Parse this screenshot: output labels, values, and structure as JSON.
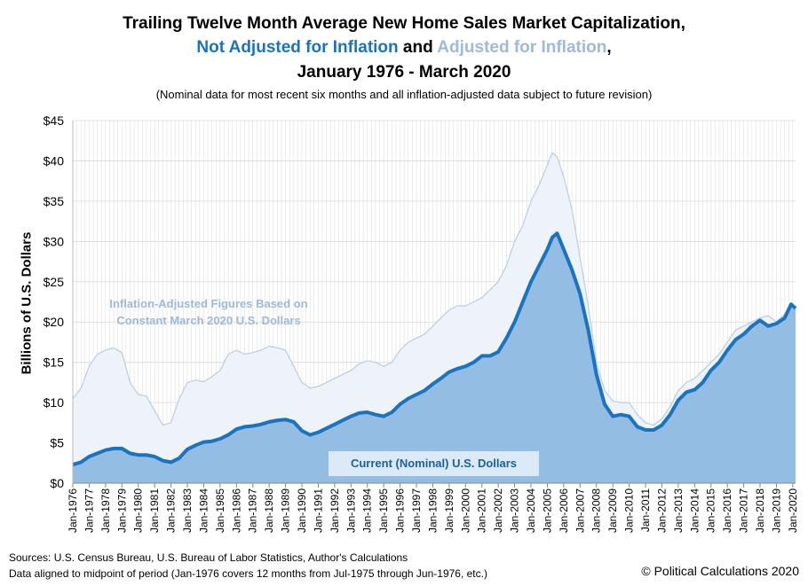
{
  "titles": {
    "line1": "Trailing Twelve Month Average New Home Sales Market Capitalization,",
    "line2_nominal": "Not Adjusted for Inflation",
    "line2_and": " and ",
    "line2_adjusted": "Adjusted for Inflation",
    "line2_comma": ",",
    "line3": "January 1976 - March 2020",
    "subtitle": "(Nominal data for most recent six months and all inflation-adjusted data subject to future revision)"
  },
  "annotations": {
    "adjusted_line1": "Inflation-Adjusted Figures Based on",
    "adjusted_line2": "Constant March 2020 U.S. Dollars",
    "nominal": "Current (Nominal) U.S. Dollars"
  },
  "footer": {
    "sources": "Sources: U.S. Census Bureau, U.S. Bureau of Labor Statistics, Author's Calculations",
    "alignment": "Data aligned to midpoint of period (Jan-1976 covers 12 months from Jul-1975 through Jun-1976, etc.)",
    "copyright": "© Political Calculations 2020"
  },
  "chart_data": {
    "type": "area",
    "ylabel": "Billions of U.S. Dollars",
    "xlabel": "",
    "ylim": [
      0,
      45
    ],
    "yticks": [
      "$0",
      "$5",
      "$10",
      "$15",
      "$20",
      "$25",
      "$30",
      "$35",
      "$40",
      "$45"
    ],
    "xlim": [
      1976,
      2020.17
    ],
    "xticks": [
      "Jan-1976",
      "Jan-1977",
      "Jan-1978",
      "Jan-1979",
      "Jan-1980",
      "Jan-1981",
      "Jan-1982",
      "Jan-1983",
      "Jan-1984",
      "Jan-1985",
      "Jan-1986",
      "Jan-1987",
      "Jan-1988",
      "Jan-1989",
      "Jan-1990",
      "Jan-1991",
      "Jan-1992",
      "Jan-1993",
      "Jan-1994",
      "Jan-1995",
      "Jan-1996",
      "Jan-1997",
      "Jan-1998",
      "Jan-1999",
      "Jan-2000",
      "Jan-2001",
      "Jan-2002",
      "Jan-2003",
      "Jan-2004",
      "Jan-2005",
      "Jan-2006",
      "Jan-2007",
      "Jan-2008",
      "Jan-2009",
      "Jan-2010",
      "Jan-2011",
      "Jan-2012",
      "Jan-2013",
      "Jan-2014",
      "Jan-2015",
      "Jan-2016",
      "Jan-2017",
      "Jan-2018",
      "Jan-2019",
      "Jan-2020"
    ],
    "grid": true,
    "colors": {
      "nominal_line": "#1a73c0",
      "nominal_fill": "#94bde3",
      "adjusted_line": "#b7cde6",
      "adjusted_fill": "#eef3fa",
      "grid": "#d9d9d9"
    },
    "series": [
      {
        "key": "adjusted",
        "x": [
          1976.0,
          1976.5,
          1977.0,
          1977.5,
          1978.0,
          1978.5,
          1979.0,
          1979.5,
          1980.0,
          1980.5,
          1981.0,
          1981.5,
          1982.0,
          1982.5,
          1983.0,
          1983.5,
          1984.0,
          1984.5,
          1985.0,
          1985.5,
          1986.0,
          1986.5,
          1987.0,
          1987.5,
          1988.0,
          1988.5,
          1989.0,
          1989.5,
          1990.0,
          1990.5,
          1991.0,
          1991.5,
          1992.0,
          1992.5,
          1993.0,
          1993.5,
          1994.0,
          1994.5,
          1995.0,
          1995.5,
          1996.0,
          1996.5,
          1997.0,
          1997.5,
          1998.0,
          1998.5,
          1999.0,
          1999.5,
          2000.0,
          2000.5,
          2001.0,
          2001.5,
          2002.0,
          2002.5,
          2003.0,
          2003.5,
          2004.0,
          2004.5,
          2005.0,
          2005.3,
          2005.6,
          2006.0,
          2006.5,
          2007.0,
          2007.5,
          2008.0,
          2008.5,
          2009.0,
          2009.5,
          2010.0,
          2010.5,
          2011.0,
          2011.5,
          2012.0,
          2012.5,
          2013.0,
          2013.5,
          2014.0,
          2014.5,
          2015.0,
          2015.5,
          2016.0,
          2016.5,
          2017.0,
          2017.5,
          2018.0,
          2018.5,
          2019.0,
          2019.5,
          2019.9,
          2020.17
        ],
        "values": [
          10.5,
          11.8,
          14.5,
          16.0,
          16.5,
          16.8,
          16.2,
          12.5,
          11.0,
          10.8,
          9.0,
          7.2,
          7.5,
          10.5,
          12.5,
          12.8,
          12.6,
          13.2,
          14.0,
          16.0,
          16.5,
          16.0,
          16.2,
          16.5,
          17.0,
          16.8,
          16.5,
          14.5,
          12.5,
          11.8,
          12.0,
          12.5,
          13.0,
          13.5,
          14.0,
          14.8,
          15.2,
          15.0,
          14.5,
          15.0,
          16.5,
          17.5,
          18.0,
          18.5,
          19.5,
          20.5,
          21.5,
          22.0,
          22.0,
          22.5,
          23.0,
          24.0,
          25.0,
          27.0,
          30.0,
          32.0,
          35.0,
          37.0,
          39.5,
          41.0,
          40.5,
          38.0,
          34.0,
          28.0,
          22.0,
          15.0,
          11.5,
          10.2,
          10.0,
          10.0,
          8.5,
          7.5,
          7.2,
          8.0,
          9.5,
          11.5,
          12.5,
          13.0,
          14.0,
          15.0,
          16.0,
          17.5,
          19.0,
          19.5,
          20.0,
          20.5,
          20.8,
          20.0,
          21.0,
          22.0,
          21.8
        ]
      },
      {
        "key": "nominal",
        "x": [
          1976.0,
          1976.5,
          1977.0,
          1977.5,
          1978.0,
          1978.5,
          1979.0,
          1979.5,
          1980.0,
          1980.5,
          1981.0,
          1981.5,
          1982.0,
          1982.5,
          1983.0,
          1983.5,
          1984.0,
          1984.5,
          1985.0,
          1985.5,
          1986.0,
          1986.5,
          1987.0,
          1987.5,
          1988.0,
          1988.5,
          1989.0,
          1989.5,
          1990.0,
          1990.5,
          1991.0,
          1991.5,
          1992.0,
          1992.5,
          1993.0,
          1993.5,
          1994.0,
          1994.5,
          1995.0,
          1995.5,
          1996.0,
          1996.5,
          1997.0,
          1997.5,
          1998.0,
          1998.5,
          1999.0,
          1999.5,
          2000.0,
          2000.5,
          2001.0,
          2001.5,
          2002.0,
          2002.5,
          2003.0,
          2003.5,
          2004.0,
          2004.5,
          2005.0,
          2005.3,
          2005.6,
          2006.0,
          2006.5,
          2007.0,
          2007.5,
          2008.0,
          2008.5,
          2009.0,
          2009.5,
          2010.0,
          2010.5,
          2011.0,
          2011.5,
          2012.0,
          2012.5,
          2013.0,
          2013.5,
          2014.0,
          2014.5,
          2015.0,
          2015.5,
          2016.0,
          2016.5,
          2017.0,
          2017.5,
          2018.0,
          2018.5,
          2019.0,
          2019.5,
          2019.9,
          2020.17
        ],
        "values": [
          2.3,
          2.6,
          3.3,
          3.7,
          4.1,
          4.3,
          4.3,
          3.7,
          3.5,
          3.5,
          3.3,
          2.8,
          2.6,
          3.1,
          4.2,
          4.7,
          5.1,
          5.2,
          5.5,
          6.0,
          6.7,
          7.0,
          7.1,
          7.3,
          7.6,
          7.8,
          7.9,
          7.6,
          6.5,
          6.0,
          6.3,
          6.8,
          7.3,
          7.8,
          8.3,
          8.7,
          8.8,
          8.5,
          8.3,
          8.8,
          9.8,
          10.5,
          11.0,
          11.5,
          12.3,
          13.0,
          13.8,
          14.2,
          14.5,
          15.0,
          15.8,
          15.8,
          16.3,
          18.0,
          20.0,
          22.5,
          25.0,
          27.0,
          29.0,
          30.5,
          31.0,
          29.0,
          26.5,
          23.5,
          19.0,
          13.5,
          9.8,
          8.3,
          8.5,
          8.3,
          7.0,
          6.6,
          6.6,
          7.2,
          8.5,
          10.3,
          11.3,
          11.6,
          12.5,
          14.0,
          15.0,
          16.5,
          17.8,
          18.5,
          19.5,
          20.2,
          19.5,
          19.8,
          20.5,
          22.2,
          21.7
        ]
      }
    ]
  }
}
